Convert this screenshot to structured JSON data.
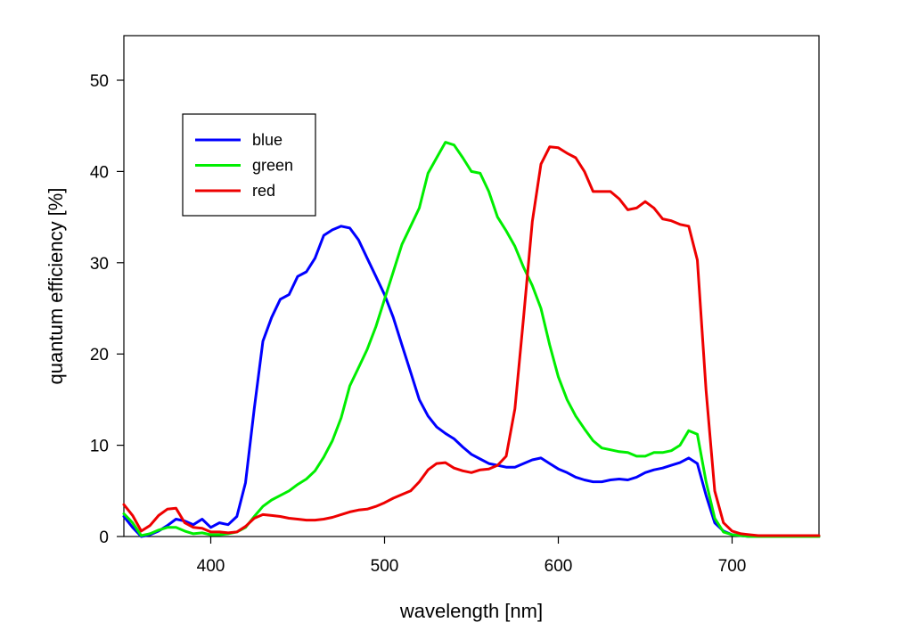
{
  "chart_data": {
    "type": "line",
    "xlabel": "wavelength [nm]",
    "ylabel": "quantum efficiency [%]",
    "xlim": [
      350,
      750
    ],
    "ylim": [
      0,
      55
    ],
    "x_ticks": [
      400,
      500,
      600,
      700
    ],
    "y_ticks": [
      0,
      10,
      20,
      30,
      40,
      50
    ],
    "grid": false,
    "legend_position": "top-left",
    "series": [
      {
        "name": "blue",
        "color": "#0000ff",
        "x": [
          350,
          355,
          360,
          365,
          370,
          375,
          380,
          385,
          390,
          395,
          400,
          405,
          410,
          415,
          420,
          425,
          430,
          435,
          440,
          445,
          450,
          455,
          460,
          465,
          470,
          475,
          480,
          485,
          490,
          495,
          500,
          505,
          510,
          515,
          520,
          525,
          530,
          535,
          540,
          545,
          550,
          555,
          560,
          565,
          570,
          575,
          580,
          585,
          590,
          595,
          600,
          605,
          610,
          615,
          620,
          625,
          630,
          635,
          640,
          645,
          650,
          655,
          660,
          665,
          670,
          675,
          680,
          685,
          690,
          695,
          700,
          705,
          710,
          715,
          720,
          730,
          740,
          750
        ],
        "y": [
          2.2,
          1.0,
          0.0,
          0.2,
          0.6,
          1.2,
          1.9,
          1.7,
          1.3,
          1.9,
          1.0,
          1.5,
          1.3,
          2.2,
          5.9,
          14.0,
          21.4,
          24.0,
          26.0,
          26.5,
          28.5,
          29.0,
          30.5,
          33.0,
          33.6,
          34.0,
          33.8,
          32.5,
          30.5,
          28.5,
          26.5,
          24.0,
          21.0,
          18.0,
          15.0,
          13.2,
          12.0,
          11.3,
          10.7,
          9.8,
          9.0,
          8.5,
          8.0,
          7.8,
          7.6,
          7.6,
          8.0,
          8.4,
          8.6,
          8.0,
          7.4,
          7.0,
          6.5,
          6.2,
          6.0,
          6.0,
          6.2,
          6.3,
          6.2,
          6.5,
          7.0,
          7.3,
          7.5,
          7.8,
          8.1,
          8.6,
          8.0,
          4.5,
          1.5,
          0.6,
          0.2,
          0.1,
          0.0,
          0.0,
          0.0,
          0.0,
          0.0,
          0.0
        ]
      },
      {
        "name": "green",
        "color": "#00ee00",
        "x": [
          350,
          355,
          360,
          365,
          370,
          375,
          380,
          385,
          390,
          395,
          400,
          405,
          410,
          415,
          420,
          425,
          430,
          435,
          440,
          445,
          450,
          455,
          460,
          465,
          470,
          475,
          480,
          485,
          490,
          495,
          500,
          505,
          510,
          515,
          520,
          525,
          530,
          535,
          540,
          545,
          550,
          555,
          560,
          565,
          570,
          575,
          580,
          585,
          590,
          595,
          600,
          605,
          610,
          615,
          620,
          625,
          630,
          635,
          640,
          645,
          650,
          655,
          660,
          665,
          670,
          675,
          680,
          685,
          690,
          695,
          700,
          705,
          710,
          715,
          720,
          730,
          740,
          750
        ],
        "y": [
          2.5,
          1.5,
          0.1,
          0.3,
          0.7,
          1.0,
          1.0,
          0.6,
          0.3,
          0.4,
          0.2,
          0.2,
          0.3,
          0.5,
          1.0,
          2.2,
          3.3,
          4.0,
          4.5,
          5.0,
          5.7,
          6.3,
          7.2,
          8.7,
          10.5,
          13.0,
          16.5,
          18.5,
          20.5,
          23.0,
          26.0,
          29.0,
          32.0,
          34.0,
          36.0,
          39.8,
          41.5,
          43.2,
          42.9,
          41.5,
          40.0,
          39.8,
          37.8,
          35.0,
          33.5,
          31.8,
          29.5,
          27.5,
          25.0,
          21.0,
          17.5,
          15.0,
          13.2,
          11.8,
          10.5,
          9.7,
          9.5,
          9.3,
          9.2,
          8.8,
          8.8,
          9.2,
          9.2,
          9.4,
          10.0,
          11.6,
          11.2,
          6.0,
          2.0,
          0.5,
          0.2,
          0.1,
          0.0,
          0.0,
          0.0,
          0.0,
          0.0,
          0.0
        ]
      },
      {
        "name": "red",
        "color": "#ee0000",
        "x": [
          350,
          355,
          360,
          365,
          370,
          375,
          380,
          385,
          390,
          395,
          400,
          405,
          410,
          415,
          420,
          425,
          430,
          435,
          440,
          445,
          450,
          455,
          460,
          465,
          470,
          475,
          480,
          485,
          490,
          495,
          500,
          505,
          510,
          515,
          520,
          525,
          530,
          535,
          540,
          545,
          550,
          555,
          560,
          565,
          570,
          575,
          580,
          585,
          590,
          595,
          600,
          605,
          610,
          615,
          620,
          625,
          630,
          635,
          640,
          645,
          650,
          655,
          660,
          665,
          670,
          675,
          680,
          685,
          690,
          695,
          700,
          705,
          710,
          715,
          720,
          730,
          740,
          750
        ],
        "y": [
          3.5,
          2.3,
          0.6,
          1.2,
          2.3,
          3.0,
          3.1,
          1.5,
          1.0,
          0.9,
          0.5,
          0.5,
          0.4,
          0.5,
          1.1,
          2.0,
          2.4,
          2.3,
          2.2,
          2.0,
          1.9,
          1.8,
          1.8,
          1.9,
          2.1,
          2.4,
          2.7,
          2.9,
          3.0,
          3.3,
          3.7,
          4.2,
          4.6,
          5.0,
          6.0,
          7.3,
          8.0,
          8.1,
          7.5,
          7.2,
          7.0,
          7.3,
          7.4,
          7.8,
          8.8,
          14.0,
          24.0,
          34.5,
          40.8,
          42.7,
          42.6,
          42.0,
          41.5,
          40.0,
          37.8,
          37.8,
          37.8,
          37.0,
          35.8,
          36.0,
          36.7,
          36.0,
          34.8,
          34.6,
          34.2,
          34.0,
          30.3,
          16.0,
          5.0,
          1.5,
          0.6,
          0.3,
          0.2,
          0.1,
          0.1,
          0.1,
          0.1,
          0.1
        ]
      }
    ]
  }
}
